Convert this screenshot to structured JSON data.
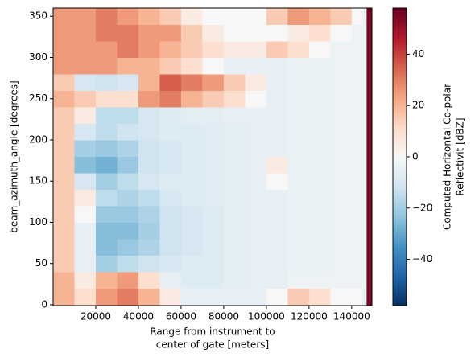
{
  "chart_data": {
    "type": "heatmap",
    "xlabel": [
      "Range from instrument to",
      "center of gate [meters]"
    ],
    "ylabel": "beam_azimuth_angle [degrees]",
    "colorbar_label": [
      "Computed Horizontal Co-polar",
      "Reflectivit [dBZ]"
    ],
    "colormap": "RdBu_r",
    "xlim": [
      0,
      149500
    ],
    "ylim": [
      -1,
      360
    ],
    "xticks": [
      20000,
      40000,
      60000,
      80000,
      100000,
      120000,
      140000
    ],
    "yticks": [
      0,
      50,
      100,
      150,
      200,
      250,
      300,
      350
    ],
    "clim": [
      -58,
      58
    ],
    "cticks": [
      {
        "value": -40,
        "label": "−40"
      },
      {
        "value": -20,
        "label": "−20"
      },
      0,
      20,
      40
    ],
    "x_edges": [
      0,
      10000,
      20000,
      30000,
      40000,
      50000,
      60000,
      70000,
      80000,
      90000,
      100000,
      110000,
      120000,
      130000,
      140000,
      145000,
      147000,
      149500
    ],
    "y_edges": [
      0,
      20,
      40,
      60,
      80,
      100,
      120,
      140,
      160,
      180,
      200,
      220,
      240,
      260,
      280,
      300,
      320,
      340,
      360
    ],
    "z": [
      [
        20,
        10,
        25,
        30,
        20,
        5,
        -5,
        -5,
        -5,
        -5,
        0,
        15,
        10,
        0,
        0,
        -5,
        55
      ],
      [
        20,
        5,
        20,
        25,
        10,
        -5,
        -8,
        -8,
        -6,
        -5,
        -5,
        -3,
        -3,
        -3,
        -3,
        -3,
        55
      ],
      [
        15,
        -5,
        -20,
        -15,
        -12,
        -10,
        -8,
        -8,
        -6,
        -5,
        -5,
        -4,
        -4,
        -3,
        -3,
        -3,
        55
      ],
      [
        15,
        -5,
        -25,
        -22,
        -18,
        -12,
        -10,
        -8,
        -6,
        -5,
        -5,
        -4,
        -4,
        -3,
        -3,
        -3,
        55
      ],
      [
        15,
        -5,
        -25,
        -25,
        -20,
        -12,
        -10,
        -8,
        -6,
        -5,
        -5,
        -4,
        -4,
        -3,
        -3,
        -3,
        55
      ],
      [
        15,
        0,
        -22,
        -22,
        -18,
        -12,
        -10,
        -8,
        -6,
        -5,
        -5,
        -4,
        -4,
        -3,
        -3,
        -3,
        55
      ],
      [
        15,
        5,
        -15,
        -18,
        -15,
        -10,
        -8,
        -7,
        -6,
        -5,
        -5,
        -4,
        -4,
        -3,
        -3,
        -3,
        55
      ],
      [
        15,
        -10,
        -20,
        -15,
        -10,
        -8,
        -8,
        -7,
        -6,
        -5,
        0,
        -4,
        -4,
        -3,
        -3,
        -3,
        55
      ],
      [
        15,
        -25,
        -28,
        -22,
        -12,
        -10,
        -8,
        -7,
        -6,
        -5,
        5,
        -4,
        -4,
        -3,
        -3,
        -3,
        55
      ],
      [
        15,
        -20,
        -22,
        -18,
        -12,
        -10,
        -8,
        -7,
        -6,
        -5,
        -5,
        -4,
        -4,
        -3,
        -3,
        -3,
        55
      ],
      [
        15,
        -10,
        -15,
        -12,
        -10,
        -8,
        -8,
        -7,
        -6,
        -5,
        -5,
        -4,
        -4,
        -3,
        -3,
        -3,
        55
      ],
      [
        15,
        5,
        -15,
        -15,
        -10,
        -8,
        -6,
        -6,
        -5,
        -5,
        -5,
        -4,
        -4,
        -3,
        -3,
        -3,
        55
      ],
      [
        20,
        15,
        10,
        10,
        25,
        30,
        20,
        15,
        10,
        0,
        -5,
        -4,
        -4,
        -3,
        -3,
        -3,
        55
      ],
      [
        15,
        -10,
        -12,
        -10,
        20,
        35,
        30,
        25,
        15,
        5,
        -5,
        -4,
        -4,
        -3,
        -3,
        -3,
        55
      ],
      [
        25,
        25,
        25,
        20,
        20,
        15,
        10,
        0,
        -5,
        -5,
        -5,
        -4,
        -4,
        -3,
        -3,
        -3,
        55
      ],
      [
        25,
        25,
        25,
        30,
        25,
        20,
        15,
        10,
        5,
        5,
        15,
        10,
        0,
        -3,
        -3,
        -3,
        55
      ],
      [
        25,
        25,
        30,
        30,
        25,
        25,
        15,
        5,
        0,
        0,
        0,
        5,
        10,
        0,
        -3,
        -3,
        55
      ],
      [
        25,
        25,
        30,
        25,
        20,
        15,
        5,
        0,
        0,
        0,
        15,
        25,
        20,
        15,
        0,
        -3,
        55
      ]
    ]
  }
}
